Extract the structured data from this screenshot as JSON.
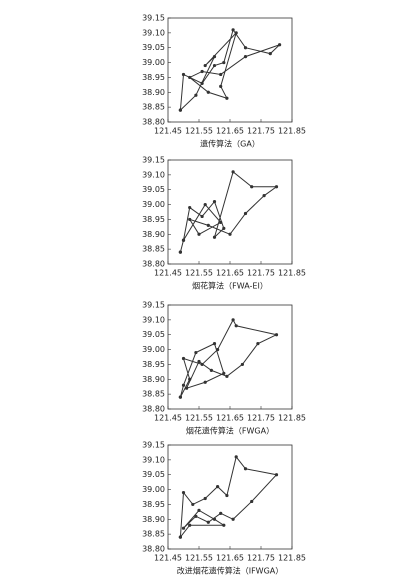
{
  "chart_data": [
    {
      "type": "line",
      "xlabel": "遗传算法（GA）",
      "color": "#333333",
      "x": [
        121.49,
        121.5,
        121.56,
        121.6,
        121.63,
        121.66,
        121.7,
        121.78,
        121.81,
        121.7,
        121.62,
        121.56,
        121.52,
        121.58,
        121.64,
        121.62,
        121.67,
        121.57,
        121.6,
        121.54,
        121.49
      ],
      "values": [
        38.84,
        38.96,
        38.93,
        38.99,
        39.0,
        39.11,
        39.05,
        39.03,
        39.06,
        39.02,
        38.96,
        38.97,
        38.95,
        38.9,
        38.88,
        38.92,
        39.1,
        38.99,
        39.02,
        38.89,
        38.84
      ],
      "xlim": [
        121.45,
        121.85
      ],
      "xticks": [
        121.45,
        121.55,
        121.65,
        121.75,
        121.85
      ],
      "ylim": [
        38.8,
        39.15
      ],
      "yticks": [
        {
          "value": 38.8,
          "label": "38.80"
        },
        38.85,
        {
          "value": 38.9,
          "label": "38.90"
        },
        38.95,
        {
          "value": 39.0,
          "label": "39.00"
        },
        39.05,
        {
          "value": 39.1,
          "label": "39.10"
        },
        39.15
      ]
    },
    {
      "type": "line",
      "xlabel": "烟花算法（FWA-EI）",
      "color": "#333333",
      "x": [
        121.49,
        121.5,
        121.52,
        121.56,
        121.6,
        121.63,
        121.6,
        121.66,
        121.72,
        121.8,
        121.76,
        121.7,
        121.65,
        121.58,
        121.52,
        121.55,
        121.62,
        121.57,
        121.5,
        121.49
      ],
      "values": [
        38.84,
        38.88,
        38.99,
        38.96,
        39.01,
        38.92,
        38.89,
        39.11,
        39.06,
        39.06,
        39.03,
        38.97,
        38.9,
        38.93,
        38.95,
        38.9,
        38.94,
        39.0,
        38.88,
        38.84
      ],
      "xlim": [
        121.45,
        121.85
      ],
      "xticks": [
        121.45,
        121.55,
        121.65,
        121.75,
        121.85
      ],
      "ylim": [
        38.8,
        39.15
      ],
      "yticks": [
        {
          "value": 38.8,
          "label": "38.80"
        },
        38.85,
        {
          "value": 38.9,
          "label": "38.90"
        },
        38.95,
        {
          "value": 39.0,
          "label": "39.00"
        },
        39.05,
        {
          "value": 39.1,
          "label": "39.10"
        },
        39.15
      ]
    },
    {
      "type": "line",
      "xlabel": "烟花遗传算法（FWGA）",
      "color": "#333333",
      "x": [
        121.49,
        121.52,
        121.5,
        121.56,
        121.61,
        121.66,
        121.67,
        121.8,
        121.74,
        121.69,
        121.64,
        121.59,
        121.55,
        121.51,
        121.57,
        121.63,
        121.6,
        121.54,
        121.5,
        121.49
      ],
      "values": [
        38.84,
        38.9,
        38.97,
        38.95,
        39.0,
        39.1,
        39.08,
        39.05,
        39.02,
        38.95,
        38.91,
        38.93,
        38.96,
        38.87,
        38.89,
        38.92,
        39.02,
        38.99,
        38.88,
        38.84
      ],
      "xlim": [
        121.45,
        121.85
      ],
      "xticks": [
        121.45,
        121.55,
        121.65,
        121.75,
        121.85
      ],
      "ylim": [
        38.8,
        39.15
      ],
      "yticks": [
        {
          "value": 38.8,
          "label": "38.80"
        },
        38.85,
        {
          "value": 38.9,
          "label": "38.90"
        },
        38.95,
        {
          "value": 39.0,
          "label": "39.00"
        },
        39.05,
        {
          "value": 39.1,
          "label": "39.10"
        },
        39.15
      ]
    },
    {
      "type": "line",
      "xlabel": "改进烟花遗传算法（IFWGA）",
      "color": "#333333",
      "x": [
        121.49,
        121.5,
        121.53,
        121.57,
        121.61,
        121.64,
        121.67,
        121.7,
        121.8,
        121.72,
        121.66,
        121.62,
        121.58,
        121.54,
        121.5,
        121.55,
        121.6,
        121.63,
        121.52,
        121.49
      ],
      "values": [
        38.84,
        38.99,
        38.95,
        38.97,
        39.01,
        38.98,
        39.11,
        39.07,
        39.05,
        38.96,
        38.9,
        38.92,
        38.89,
        38.91,
        38.87,
        38.93,
        38.9,
        38.88,
        38.88,
        38.84
      ],
      "xlim": [
        121.45,
        121.85
      ],
      "xticks": [
        121.45,
        121.55,
        121.65,
        121.75,
        121.85
      ],
      "ylim": [
        38.8,
        39.15
      ],
      "yticks": [
        {
          "value": 38.8,
          "label": "38.80"
        },
        38.85,
        {
          "value": 38.9,
          "label": "38.90"
        },
        38.95,
        {
          "value": 39.0,
          "label": "39.00"
        },
        39.05,
        {
          "value": 39.1,
          "label": "39.10"
        },
        39.15
      ]
    }
  ]
}
